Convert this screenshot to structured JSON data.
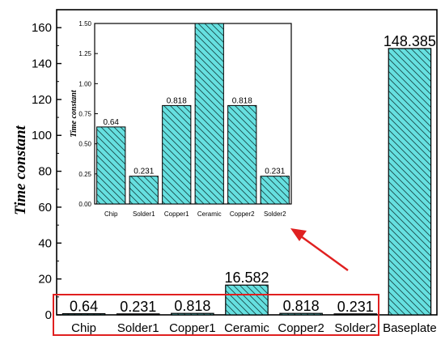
{
  "chart_data": [
    {
      "type": "bar",
      "ylabel": "Time constant",
      "ylim": [
        0,
        170
      ],
      "yticks": [
        0,
        20,
        40,
        60,
        80,
        100,
        120,
        140,
        160
      ],
      "categories": [
        "Chip",
        "Solder1",
        "Copper1",
        "Ceramic",
        "Copper2",
        "Solder2",
        "Baseplate"
      ],
      "values": [
        0.64,
        0.231,
        0.818,
        16.582,
        0.818,
        0.231,
        148.385
      ],
      "value_labels": [
        "0.64",
        "0.231",
        "0.818",
        "16.582",
        "0.818",
        "0.231",
        "148.385"
      ],
      "bar_fill": "#66e0e0",
      "highlight_color": "#e02020",
      "grid": false
    },
    {
      "type": "bar",
      "ylabel": "Time constant",
      "ylim": [
        0,
        1.5
      ],
      "yticks": [
        "0.00",
        "0.25",
        "0.50",
        "0.75",
        "1.00",
        "1.25",
        "1.50"
      ],
      "categories": [
        "Chip",
        "Solder1",
        "Copper1",
        "Ceramic",
        "Copper2",
        "Solder2"
      ],
      "values": [
        0.64,
        0.231,
        0.818,
        1.5,
        0.818,
        0.231
      ],
      "value_labels": [
        "0.64",
        "0.231",
        "0.818",
        "",
        "0.818",
        "0.231"
      ],
      "bar_fill": "#66e0e0",
      "grid": false
    }
  ]
}
